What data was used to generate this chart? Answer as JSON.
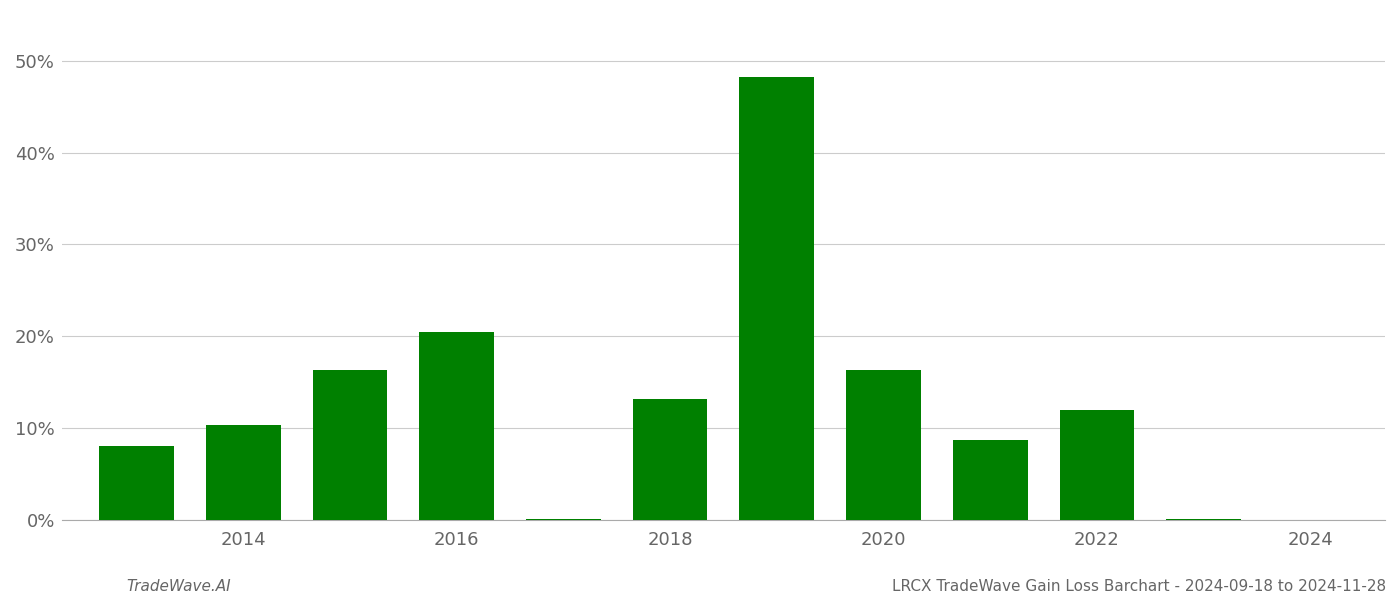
{
  "years": [
    2013,
    2014,
    2015,
    2016,
    2017,
    2018,
    2019,
    2020,
    2021,
    2022,
    2023,
    2024
  ],
  "values": [
    0.08,
    0.103,
    0.163,
    0.205,
    0.001,
    0.132,
    0.482,
    0.163,
    0.087,
    0.12,
    0.001,
    0.0
  ],
  "bar_color": "#008000",
  "ylim": [
    0,
    0.55
  ],
  "yticks": [
    0.0,
    0.1,
    0.2,
    0.3,
    0.4,
    0.5
  ],
  "ytick_labels": [
    "0%",
    "10%",
    "20%",
    "30%",
    "40%",
    "50%"
  ],
  "xtick_years": [
    2014,
    2016,
    2018,
    2020,
    2022,
    2024
  ],
  "title": "LRCX TradeWave Gain Loss Barchart - 2024-09-18 to 2024-11-28",
  "footer_left": "TradeWave.AI",
  "background_color": "#ffffff",
  "grid_color": "#cccccc",
  "bar_width": 0.7,
  "xlim_left": 2012.3,
  "xlim_right": 2024.7
}
